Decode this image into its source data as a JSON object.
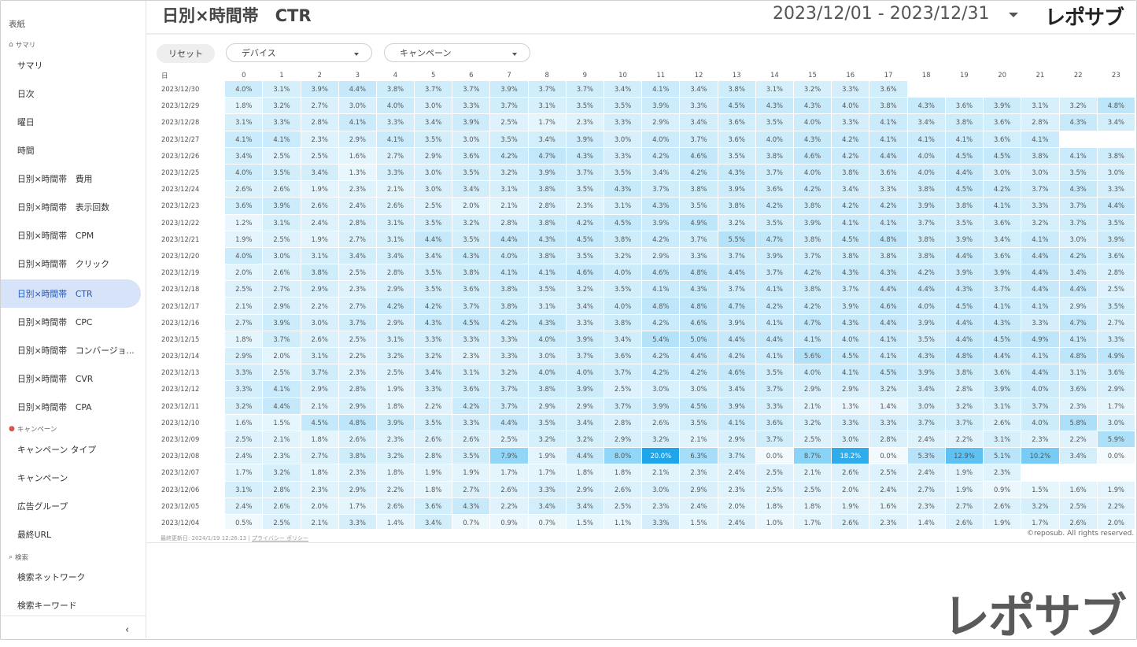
{
  "header": {
    "title": "日別×時間帯　CTR",
    "date_range": "2023/12/01 - 2023/12/31",
    "logo": "レポサブ"
  },
  "sidebar": {
    "cover": "表紙",
    "sections": [
      {
        "label": "サマリ",
        "icon": "home-icon"
      },
      {
        "label": "キャンペーン",
        "icon": "pin-icon"
      },
      {
        "label": "検索",
        "icon": "search-icon"
      }
    ],
    "items": [
      {
        "label": "サマリ"
      },
      {
        "label": "日次"
      },
      {
        "label": "曜日"
      },
      {
        "label": "時間"
      },
      {
        "label": "日別×時間帯　費用"
      },
      {
        "label": "日別×時間帯　表示回数"
      },
      {
        "label": "日別×時間帯　CPM"
      },
      {
        "label": "日別×時間帯　クリック"
      },
      {
        "label": "日別×時間帯　CTR",
        "active": true
      },
      {
        "label": "日別×時間帯　CPC"
      },
      {
        "label": "日別×時間帯　コンバージョ..."
      },
      {
        "label": "日別×時間帯　CVR"
      },
      {
        "label": "日別×時間帯　CPA"
      },
      {
        "label": "キャンペーン タイプ"
      },
      {
        "label": "キャンペーン"
      },
      {
        "label": "広告グループ"
      },
      {
        "label": "最終URL"
      },
      {
        "label": "検索ネットワーク"
      },
      {
        "label": "検索キーワード"
      }
    ],
    "collapse": "‹"
  },
  "filters": {
    "reset": "リセット",
    "device": "デバイス",
    "campaign": "キャンペーン"
  },
  "table": {
    "date_header": "日",
    "hours": [
      "0",
      "1",
      "2",
      "3",
      "4",
      "5",
      "6",
      "7",
      "8",
      "9",
      "10",
      "11",
      "12",
      "13",
      "14",
      "15",
      "16",
      "17",
      "18",
      "19",
      "20",
      "21",
      "22",
      "23"
    ],
    "rows": [
      {
        "date": "2023/12/30",
        "values": [
          "4.0%",
          "3.1%",
          "3.9%",
          "4.4%",
          "3.8%",
          "3.7%",
          "3.7%",
          "3.9%",
          "3.7%",
          "3.7%",
          "3.4%",
          "4.1%",
          "3.4%",
          "3.8%",
          "3.1%",
          "3.2%",
          "3.3%",
          "3.6%",
          "",
          "",
          "",
          "",
          "",
          ""
        ]
      },
      {
        "date": "2023/12/29",
        "values": [
          "1.8%",
          "3.2%",
          "2.7%",
          "3.0%",
          "4.0%",
          "3.0%",
          "3.3%",
          "3.7%",
          "3.1%",
          "3.5%",
          "3.5%",
          "3.9%",
          "3.3%",
          "4.5%",
          "4.3%",
          "4.3%",
          "4.0%",
          "3.8%",
          "4.3%",
          "3.6%",
          "3.9%",
          "3.1%",
          "3.2%",
          "4.8%"
        ]
      },
      {
        "date": "2023/12/28",
        "values": [
          "3.1%",
          "3.3%",
          "2.8%",
          "4.1%",
          "3.3%",
          "3.4%",
          "3.9%",
          "2.5%",
          "1.7%",
          "2.3%",
          "3.3%",
          "2.9%",
          "3.4%",
          "3.6%",
          "3.5%",
          "4.0%",
          "3.3%",
          "4.1%",
          "3.4%",
          "3.8%",
          "3.6%",
          "2.8%",
          "4.3%",
          "3.4%"
        ]
      },
      {
        "date": "2023/12/27",
        "values": [
          "4.1%",
          "4.1%",
          "2.3%",
          "2.9%",
          "4.1%",
          "3.5%",
          "3.0%",
          "3.5%",
          "3.4%",
          "3.9%",
          "3.0%",
          "4.0%",
          "3.7%",
          "3.6%",
          "4.0%",
          "4.3%",
          "4.2%",
          "4.1%",
          "4.1%",
          "4.1%",
          "3.6%",
          "4.1%",
          "",
          ""
        ]
      },
      {
        "date": "2023/12/26",
        "values": [
          "3.4%",
          "2.5%",
          "2.5%",
          "1.6%",
          "2.7%",
          "2.9%",
          "3.6%",
          "4.2%",
          "4.7%",
          "4.3%",
          "3.3%",
          "4.2%",
          "4.6%",
          "3.5%",
          "3.8%",
          "4.6%",
          "4.2%",
          "4.4%",
          "4.0%",
          "4.5%",
          "4.5%",
          "3.8%",
          "4.1%",
          "3.8%"
        ]
      },
      {
        "date": "2023/12/25",
        "values": [
          "4.0%",
          "3.5%",
          "3.4%",
          "1.3%",
          "3.3%",
          "3.0%",
          "3.5%",
          "3.2%",
          "3.9%",
          "3.7%",
          "3.5%",
          "3.4%",
          "4.2%",
          "4.3%",
          "3.7%",
          "4.0%",
          "3.8%",
          "3.6%",
          "4.0%",
          "4.4%",
          "3.0%",
          "3.0%",
          "3.5%",
          "3.0%"
        ]
      },
      {
        "date": "2023/12/24",
        "values": [
          "2.6%",
          "2.6%",
          "1.9%",
          "2.3%",
          "2.1%",
          "3.0%",
          "3.4%",
          "3.1%",
          "3.8%",
          "3.5%",
          "4.3%",
          "3.7%",
          "3.8%",
          "3.9%",
          "3.6%",
          "4.2%",
          "3.4%",
          "3.3%",
          "3.8%",
          "4.5%",
          "4.2%",
          "3.7%",
          "4.3%",
          "3.3%"
        ]
      },
      {
        "date": "2023/12/23",
        "values": [
          "3.6%",
          "3.9%",
          "2.6%",
          "2.4%",
          "2.6%",
          "2.5%",
          "2.0%",
          "2.1%",
          "2.8%",
          "2.3%",
          "3.1%",
          "4.3%",
          "3.5%",
          "3.8%",
          "4.2%",
          "3.8%",
          "4.2%",
          "4.2%",
          "3.9%",
          "3.8%",
          "4.1%",
          "3.3%",
          "3.7%",
          "4.4%"
        ]
      },
      {
        "date": "2023/12/22",
        "values": [
          "1.2%",
          "3.1%",
          "2.4%",
          "2.8%",
          "3.1%",
          "3.5%",
          "3.2%",
          "2.8%",
          "3.8%",
          "4.2%",
          "4.5%",
          "3.9%",
          "4.9%",
          "3.2%",
          "3.5%",
          "3.9%",
          "4.1%",
          "4.1%",
          "3.7%",
          "3.5%",
          "3.6%",
          "3.2%",
          "3.7%",
          "3.5%"
        ]
      },
      {
        "date": "2023/12/21",
        "values": [
          "1.9%",
          "2.5%",
          "1.9%",
          "2.7%",
          "3.1%",
          "4.4%",
          "3.5%",
          "4.4%",
          "4.3%",
          "4.5%",
          "3.8%",
          "4.2%",
          "3.7%",
          "5.5%",
          "4.7%",
          "3.8%",
          "4.5%",
          "4.8%",
          "3.8%",
          "3.9%",
          "3.4%",
          "4.1%",
          "3.0%",
          "3.9%"
        ]
      },
      {
        "date": "2023/12/20",
        "values": [
          "4.0%",
          "3.0%",
          "3.1%",
          "3.4%",
          "3.4%",
          "3.4%",
          "4.3%",
          "4.0%",
          "3.8%",
          "3.5%",
          "3.2%",
          "2.9%",
          "3.3%",
          "3.7%",
          "3.9%",
          "3.7%",
          "3.8%",
          "3.8%",
          "3.8%",
          "4.4%",
          "3.6%",
          "4.4%",
          "4.2%",
          "3.6%"
        ]
      },
      {
        "date": "2023/12/19",
        "values": [
          "2.0%",
          "2.6%",
          "3.8%",
          "2.5%",
          "2.8%",
          "3.5%",
          "3.8%",
          "4.1%",
          "4.1%",
          "4.6%",
          "4.0%",
          "4.6%",
          "4.8%",
          "4.4%",
          "3.7%",
          "4.2%",
          "4.3%",
          "4.3%",
          "4.2%",
          "3.9%",
          "3.9%",
          "4.4%",
          "3.4%",
          "2.8%"
        ]
      },
      {
        "date": "2023/12/18",
        "values": [
          "2.5%",
          "2.7%",
          "2.9%",
          "2.3%",
          "2.9%",
          "3.5%",
          "3.6%",
          "3.8%",
          "3.5%",
          "3.2%",
          "3.5%",
          "4.1%",
          "4.3%",
          "3.7%",
          "4.1%",
          "3.8%",
          "3.7%",
          "4.4%",
          "4.4%",
          "4.3%",
          "3.7%",
          "4.4%",
          "4.4%",
          "2.5%"
        ]
      },
      {
        "date": "2023/12/17",
        "values": [
          "2.1%",
          "2.9%",
          "2.2%",
          "2.7%",
          "4.2%",
          "4.2%",
          "3.7%",
          "3.8%",
          "3.1%",
          "3.4%",
          "4.0%",
          "4.8%",
          "4.8%",
          "4.7%",
          "4.2%",
          "4.2%",
          "3.9%",
          "4.6%",
          "4.0%",
          "4.5%",
          "4.1%",
          "4.1%",
          "2.9%",
          "3.5%"
        ]
      },
      {
        "date": "2023/12/16",
        "values": [
          "2.7%",
          "3.9%",
          "3.0%",
          "3.7%",
          "2.9%",
          "4.3%",
          "4.5%",
          "4.2%",
          "4.3%",
          "3.3%",
          "3.8%",
          "4.2%",
          "4.6%",
          "3.9%",
          "4.1%",
          "4.7%",
          "4.3%",
          "4.4%",
          "3.9%",
          "4.4%",
          "4.3%",
          "3.3%",
          "4.7%",
          "2.7%"
        ]
      },
      {
        "date": "2023/12/15",
        "values": [
          "1.8%",
          "3.7%",
          "2.6%",
          "2.5%",
          "3.1%",
          "3.3%",
          "3.3%",
          "3.3%",
          "4.0%",
          "3.9%",
          "3.4%",
          "5.4%",
          "5.0%",
          "4.4%",
          "4.4%",
          "4.1%",
          "4.0%",
          "4.1%",
          "3.5%",
          "4.4%",
          "4.5%",
          "4.9%",
          "4.1%",
          "3.3%"
        ]
      },
      {
        "date": "2023/12/14",
        "values": [
          "2.9%",
          "2.0%",
          "3.1%",
          "2.2%",
          "3.2%",
          "3.2%",
          "2.3%",
          "3.3%",
          "3.0%",
          "3.7%",
          "3.6%",
          "4.2%",
          "4.4%",
          "4.2%",
          "4.1%",
          "5.6%",
          "4.5%",
          "4.1%",
          "4.3%",
          "4.8%",
          "4.4%",
          "4.1%",
          "4.8%",
          "4.9%"
        ]
      },
      {
        "date": "2023/12/13",
        "values": [
          "3.3%",
          "2.5%",
          "3.7%",
          "2.3%",
          "2.5%",
          "3.4%",
          "3.1%",
          "3.2%",
          "4.0%",
          "4.0%",
          "3.7%",
          "4.2%",
          "4.2%",
          "4.6%",
          "3.5%",
          "4.0%",
          "4.1%",
          "4.5%",
          "3.9%",
          "3.8%",
          "3.6%",
          "4.4%",
          "3.1%",
          "3.6%"
        ]
      },
      {
        "date": "2023/12/12",
        "values": [
          "3.3%",
          "4.1%",
          "2.9%",
          "2.8%",
          "1.9%",
          "3.3%",
          "3.6%",
          "3.7%",
          "3.8%",
          "3.9%",
          "2.5%",
          "3.0%",
          "3.0%",
          "3.4%",
          "3.7%",
          "2.9%",
          "2.9%",
          "3.2%",
          "3.4%",
          "2.8%",
          "3.9%",
          "4.0%",
          "3.6%",
          "2.9%"
        ]
      },
      {
        "date": "2023/12/11",
        "values": [
          "3.2%",
          "4.4%",
          "2.1%",
          "2.9%",
          "1.8%",
          "2.2%",
          "4.2%",
          "3.7%",
          "2.9%",
          "2.9%",
          "3.7%",
          "3.9%",
          "4.5%",
          "3.9%",
          "3.3%",
          "2.1%",
          "1.3%",
          "1.4%",
          "3.0%",
          "3.2%",
          "3.1%",
          "3.7%",
          "2.3%",
          "1.7%"
        ]
      },
      {
        "date": "2023/12/10",
        "values": [
          "1.6%",
          "1.5%",
          "4.5%",
          "4.8%",
          "3.9%",
          "3.5%",
          "3.3%",
          "4.4%",
          "3.5%",
          "3.4%",
          "2.8%",
          "2.6%",
          "3.5%",
          "4.1%",
          "3.6%",
          "3.2%",
          "3.3%",
          "3.3%",
          "3.7%",
          "3.7%",
          "2.6%",
          "4.0%",
          "5.8%",
          "3.0%"
        ]
      },
      {
        "date": "2023/12/09",
        "values": [
          "2.5%",
          "2.1%",
          "1.8%",
          "2.6%",
          "2.3%",
          "2.6%",
          "2.6%",
          "2.5%",
          "3.2%",
          "3.2%",
          "2.9%",
          "3.2%",
          "2.1%",
          "2.9%",
          "3.7%",
          "2.5%",
          "3.0%",
          "2.8%",
          "2.4%",
          "2.2%",
          "3.1%",
          "2.3%",
          "2.2%",
          "5.9%"
        ]
      },
      {
        "date": "2023/12/08",
        "values": [
          "2.4%",
          "2.3%",
          "2.7%",
          "3.8%",
          "3.2%",
          "2.8%",
          "3.5%",
          "7.9%",
          "1.9%",
          "4.4%",
          "8.0%",
          "20.0%",
          "6.3%",
          "3.7%",
          "0.0%",
          "8.7%",
          "18.2%",
          "0.0%",
          "5.3%",
          "12.9%",
          "5.1%",
          "10.2%",
          "3.4%",
          "0.0%"
        ]
      },
      {
        "date": "2023/12/07",
        "values": [
          "1.7%",
          "3.2%",
          "1.8%",
          "2.3%",
          "1.8%",
          "1.9%",
          "1.9%",
          "1.7%",
          "1.7%",
          "1.8%",
          "1.8%",
          "2.1%",
          "2.3%",
          "2.4%",
          "2.5%",
          "2.1%",
          "2.6%",
          "2.5%",
          "2.4%",
          "1.9%",
          "2.3%",
          "",
          "",
          ""
        ]
      },
      {
        "date": "2023/12/06",
        "values": [
          "3.1%",
          "2.8%",
          "2.3%",
          "2.9%",
          "2.2%",
          "1.8%",
          "2.7%",
          "2.6%",
          "3.3%",
          "2.9%",
          "2.6%",
          "3.0%",
          "2.9%",
          "2.3%",
          "2.5%",
          "2.5%",
          "2.0%",
          "2.4%",
          "2.7%",
          "1.9%",
          "0.9%",
          "1.5%",
          "1.6%",
          "1.9%"
        ]
      },
      {
        "date": "2023/12/05",
        "values": [
          "2.4%",
          "2.6%",
          "2.0%",
          "1.7%",
          "2.6%",
          "3.6%",
          "4.3%",
          "2.2%",
          "3.4%",
          "3.4%",
          "2.5%",
          "2.3%",
          "2.4%",
          "2.0%",
          "1.8%",
          "1.8%",
          "1.9%",
          "1.6%",
          "2.3%",
          "2.7%",
          "2.6%",
          "3.2%",
          "2.5%",
          "2.2%"
        ]
      },
      {
        "date": "2023/12/04",
        "values": [
          "0.5%",
          "2.5%",
          "2.1%",
          "3.3%",
          "1.4%",
          "3.4%",
          "0.7%",
          "0.9%",
          "0.7%",
          "1.5%",
          "1.1%",
          "3.3%",
          "1.5%",
          "2.4%",
          "1.0%",
          "1.7%",
          "2.6%",
          "2.3%",
          "1.4%",
          "2.6%",
          "1.9%",
          "1.7%",
          "2.6%",
          "2.0%"
        ]
      }
    ]
  },
  "footer": {
    "updated": "最終更新日: 2024/1/19 12:26:13",
    "separator": "|",
    "privacy": "プライバシー ポリシー",
    "copyright": "©reposub. All rights reserved."
  },
  "colors": {
    "accent": "#1f57c3",
    "active_bg": "#d6e3f8"
  }
}
